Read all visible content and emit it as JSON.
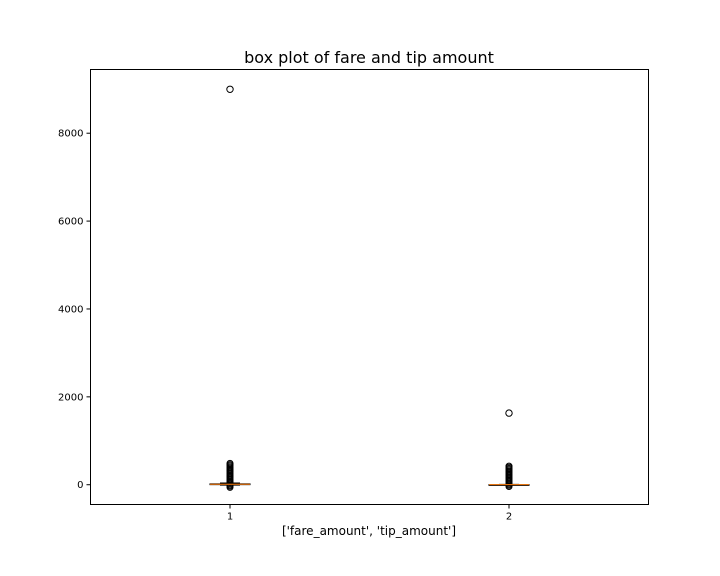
{
  "chart_data": {
    "type": "box",
    "title": "box plot of fare and tip amount",
    "xlabel": "['fare_amount', 'tip_amount']",
    "ylabel": "",
    "ylim": [
      -450,
      9450
    ],
    "yticks": [
      0,
      2000,
      4000,
      6000,
      8000
    ],
    "categories": [
      "1",
      "2"
    ],
    "grid": false,
    "colors": {
      "box": "#000000",
      "median": "#ff7f0e",
      "flier": "#000000"
    },
    "boxes": [
      {
        "label": "1",
        "whisker_low": -10,
        "q1": 8,
        "median": 12,
        "q3": 20,
        "whisker_high": 40,
        "flier_dense_range": [
          -60,
          490
        ],
        "fliers": [
          9000
        ]
      },
      {
        "label": "2",
        "whisker_low": 0,
        "q1": 0,
        "median": 1.5,
        "q3": 3,
        "whisker_high": 7,
        "flier_dense_range": [
          -40,
          440
        ],
        "fliers": [
          1630
        ]
      }
    ]
  }
}
